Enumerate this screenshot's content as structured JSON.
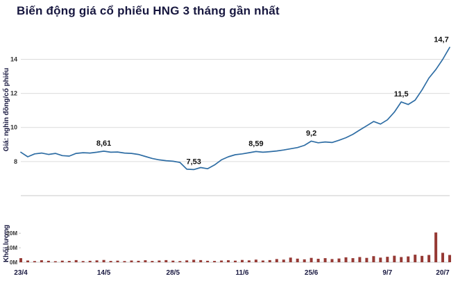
{
  "title": "Biến động giá cổ phiếu HNG 3 tháng gần nhất",
  "price_axis_label": "Giá: nghìn đồng/cổ phiếu",
  "volume_axis_label": "Khối lượng",
  "colors": {
    "title": "#17173f",
    "axis_label": "#17173f",
    "line": "#2e6da4",
    "bar": "#963a35",
    "grid": "#dcdcdc",
    "axis_line": "#c8c8c8",
    "tick_text": "#333333",
    "annotation": "#111111"
  },
  "chart_data": {
    "type": "line",
    "title": "Biến động giá cổ phiếu HNG 3 tháng gần nhất",
    "x_tick_labels": [
      "23/4",
      "14/5",
      "28/5",
      "11/6",
      "25/6",
      "9/7",
      "20/7"
    ],
    "x_tick_indices": [
      0,
      12,
      22,
      32,
      42,
      53,
      62
    ],
    "price": {
      "ylabel": "Giá: nghìn đồng/cổ phiếu",
      "ylim": [
        6,
        15.2
      ],
      "yticks": [
        8,
        10,
        12,
        14
      ],
      "values": [
        8.55,
        8.28,
        8.45,
        8.5,
        8.42,
        8.48,
        8.35,
        8.32,
        8.48,
        8.52,
        8.5,
        8.55,
        8.61,
        8.55,
        8.56,
        8.5,
        8.48,
        8.42,
        8.3,
        8.18,
        8.1,
        8.05,
        8.02,
        7.95,
        7.55,
        7.53,
        7.65,
        7.58,
        7.8,
        8.1,
        8.28,
        8.4,
        8.45,
        8.52,
        8.59,
        8.55,
        8.58,
        8.62,
        8.68,
        8.75,
        8.82,
        8.95,
        9.2,
        9.1,
        9.15,
        9.12,
        9.25,
        9.4,
        9.6,
        9.85,
        10.1,
        10.35,
        10.2,
        10.45,
        10.9,
        11.5,
        11.35,
        11.6,
        12.2,
        12.9,
        13.4,
        14.0,
        14.7
      ]
    },
    "annotations": [
      {
        "index": 12,
        "label": "8,61"
      },
      {
        "index": 25,
        "label": "7,53"
      },
      {
        "index": 34,
        "label": "8,59"
      },
      {
        "index": 42,
        "label": "9,2"
      },
      {
        "index": 55,
        "label": "11,5"
      },
      {
        "index": 62,
        "label": "14,7"
      }
    ],
    "volume": {
      "ylabel": "Khối lượng",
      "unit": "M",
      "ylim": [
        0,
        22
      ],
      "ytick_values": [
        0,
        10,
        20
      ],
      "ytick_labels": [
        "0M",
        "10M",
        "20M"
      ],
      "values": [
        2.8,
        1.2,
        0.8,
        1.4,
        1.0,
        0.7,
        1.1,
        0.9,
        1.5,
        0.8,
        1.0,
        1.3,
        1.6,
        0.9,
        1.1,
        0.8,
        1.2,
        1.0,
        1.4,
        0.9,
        1.2,
        1.5,
        1.1,
        0.8,
        1.3,
        1.7,
        1.5,
        1.0,
        0.9,
        1.2,
        1.4,
        1.1,
        1.6,
        1.3,
        1.8,
        1.2,
        1.5,
        2.2,
        1.8,
        3.2,
        2.5,
        2.0,
        3.0,
        2.4,
        2.8,
        2.2,
        2.6,
        3.4,
        2.8,
        3.6,
        3.0,
        4.2,
        3.2,
        3.8,
        4.5,
        3.6,
        4.0,
        5.2,
        4.4,
        5.0,
        20.5,
        6.5,
        5.0
      ]
    }
  }
}
